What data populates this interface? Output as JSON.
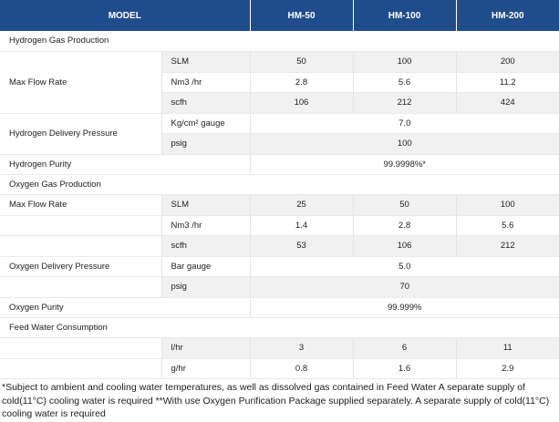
{
  "header": {
    "model": "MODEL",
    "m1": "HM-50",
    "m2": "HM-100",
    "m3": "HM-200"
  },
  "h2": {
    "section": "Hydrogen Gas Production",
    "flow_label": "Max Flow Rate",
    "flow_rows": [
      {
        "unit": "SLM",
        "v1": "50",
        "v2": "100",
        "v3": "200"
      },
      {
        "unit": "Nm3 /hr",
        "v1": "2.8",
        "v2": "5.6",
        "v3": "11.2"
      },
      {
        "unit": "scfh",
        "v1": "106",
        "v2": "212",
        "v3": "424"
      }
    ],
    "pressure_label": "Hydrogen Delivery Pressure",
    "pressure_rows": [
      {
        "unit": "Kg/cm² gauge",
        "value": "7.0"
      },
      {
        "unit": "psig",
        "value": "100"
      }
    ],
    "purity_label": "Hydrogen Purity",
    "purity_value": "99.9998%*"
  },
  "o2": {
    "section": "Oxygen Gas Production",
    "flow_label": "Max Flow Rate",
    "flow_rows": [
      {
        "unit": "SLM",
        "v1": "25",
        "v2": "50",
        "v3": "100"
      },
      {
        "unit": "Nm3 /hr",
        "v1": "1.4",
        "v2": "2.8",
        "v3": "5.6"
      },
      {
        "unit": "scfh",
        "v1": "53",
        "v2": "106",
        "v3": "212"
      }
    ],
    "pressure_label": "Oxygen Delivery Pressure",
    "pressure_rows": [
      {
        "unit": "Bar gauge",
        "value": "5.0"
      },
      {
        "unit": "psig",
        "value": "70"
      }
    ],
    "purity_label": "Oxygen Purity",
    "purity_value": "99.999%"
  },
  "water": {
    "section": "Feed Water Consumption",
    "rows": [
      {
        "unit": "l/hr",
        "v1": "3",
        "v2": "6",
        "v3": "11"
      },
      {
        "unit": "g/hr",
        "v1": "0.8",
        "v2": "1.6",
        "v3": "2.9"
      }
    ]
  },
  "footnote": "*Subject to ambient and cooling water temperatures, as well as dissolved gas contained in Feed Water A separate supply of cold(11°C) cooling water is required **With use Oxygen Purification Package supplied separately. A separate supply of cold(11°C) cooling water is required",
  "colors": {
    "header_bg": "#1f4d8c",
    "row_alt_bg": "#f1f1f1"
  }
}
